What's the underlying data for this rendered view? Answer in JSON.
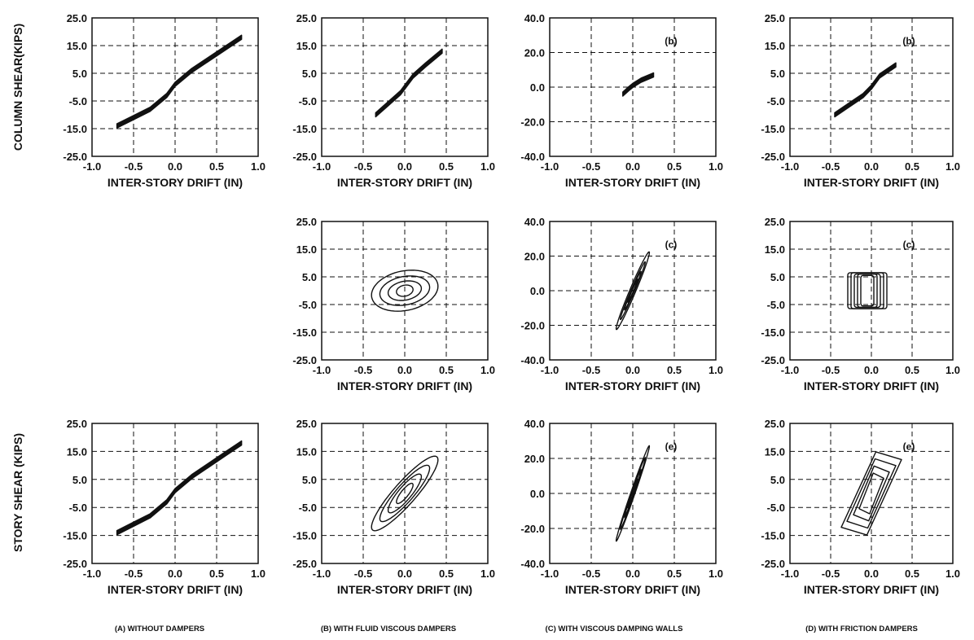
{
  "figure": {
    "row_labels": [
      "COLUMN SHEAR(KIPS)",
      "STORY SHEAR (KIPS)"
    ],
    "column_labels": [
      "(A) WITHOUT DAMPERS",
      "(B) WITH FLUID VISCOUS DAMPERS",
      "(C) WITH VISCOUS DAMPING WALLS",
      "(D) WITH FRICTION DAMPERS"
    ]
  },
  "chart_data": [
    {
      "type": "line",
      "row": 0,
      "col": 0,
      "title": "",
      "annotation": "",
      "xlabel": "INTER-STORY DRIFT (IN)",
      "ylabel": "",
      "xlim": [
        -1.0,
        1.0
      ],
      "ylim": [
        -25,
        25
      ],
      "xticks": [
        "-1.0",
        "-0.5",
        "0.0",
        "0.5",
        "1.0"
      ],
      "yticks": [
        "25.0",
        "15.0",
        "5.0",
        "-5.0",
        "-15.0",
        "-25.0"
      ],
      "grid": true,
      "shape": "narrow-loop",
      "x": [
        -0.7,
        -0.5,
        -0.3,
        -0.1,
        0.0,
        0.2,
        0.4,
        0.6,
        0.8
      ],
      "y": [
        -14,
        -11,
        -8,
        -3,
        1,
        6,
        10,
        14,
        18
      ]
    },
    {
      "type": "line",
      "row": 0,
      "col": 1,
      "title": "",
      "annotation": "",
      "xlabel": "INTER-STORY DRIFT (IN)",
      "ylabel": "",
      "xlim": [
        -1.0,
        1.0
      ],
      "ylim": [
        -25,
        25
      ],
      "xticks": [
        "-1.0",
        "-0.5",
        "0.0",
        "0.5",
        "1.0"
      ],
      "yticks": [
        "25.0",
        "15.0",
        "5.0",
        "-5.0",
        "-15.0",
        "-25.0"
      ],
      "grid": true,
      "shape": "narrow-loop",
      "x": [
        -0.35,
        -0.2,
        -0.05,
        0.0,
        0.1,
        0.25,
        0.45
      ],
      "y": [
        -10,
        -6,
        -2,
        0,
        4,
        8,
        13
      ]
    },
    {
      "type": "line",
      "row": 0,
      "col": 2,
      "title": "",
      "annotation": "(b)",
      "xlabel": "INTER-STORY DRIFT (IN)",
      "ylabel": "",
      "xlim": [
        -1.0,
        1.0
      ],
      "ylim": [
        -40,
        40
      ],
      "xticks": [
        "-1.0",
        "-0.5",
        "0.0",
        "0.5",
        "1.0"
      ],
      "yticks": [
        "40.0",
        "20.0",
        "0.0",
        "-20.0",
        "-40.0"
      ],
      "grid": true,
      "shape": "narrow-loop",
      "x": [
        -0.12,
        -0.05,
        0.0,
        0.1,
        0.25
      ],
      "y": [
        -4,
        -1,
        1,
        4,
        7
      ]
    },
    {
      "type": "line",
      "row": 0,
      "col": 3,
      "title": "",
      "annotation": "(b)",
      "xlabel": "INTER-STORY DRIFT (IN)",
      "ylabel": "",
      "xlim": [
        -1.0,
        1.0
      ],
      "ylim": [
        -25,
        25
      ],
      "xticks": [
        "-1.0",
        "-0.5",
        "0.0",
        "0.5",
        "1.0"
      ],
      "yticks": [
        "25.0",
        "15.0",
        "5.0",
        "-5.0",
        "-15.0",
        "-25.0"
      ],
      "grid": true,
      "shape": "narrow-loop",
      "x": [
        -0.45,
        -0.3,
        -0.1,
        0.0,
        0.1,
        0.3
      ],
      "y": [
        -10,
        -7,
        -3,
        0,
        4,
        8
      ]
    },
    {
      "type": "line",
      "row": 1,
      "col": 1,
      "title": "",
      "annotation": "",
      "xlabel": "INTER-STORY DRIFT (IN)",
      "ylabel": "",
      "xlim": [
        -1.0,
        1.0
      ],
      "ylim": [
        -25,
        25
      ],
      "xticks": [
        "-1.0",
        "-0.5",
        "0.0",
        "0.5",
        "1.0"
      ],
      "yticks": [
        "25.0",
        "15.0",
        "5.0",
        "-5.0",
        "-15.0",
        "-25.0"
      ],
      "grid": true,
      "shape": "ellipses",
      "x_amp": [
        0.1,
        0.2,
        0.3,
        0.4
      ],
      "y_amp": [
        2,
        3,
        4,
        5
      ],
      "slope": 4
    },
    {
      "type": "line",
      "row": 1,
      "col": 2,
      "title": "",
      "annotation": "(c)",
      "xlabel": "INTER-STORY DRIFT (IN)",
      "ylabel": "",
      "xlim": [
        -1.0,
        1.0
      ],
      "ylim": [
        -40,
        40
      ],
      "xticks": [
        "-1.0",
        "-0.5",
        "0.0",
        "0.5",
        "1.0"
      ],
      "yticks": [
        "40.0",
        "20.0",
        "0.0",
        "-20.0",
        "-40.0"
      ],
      "grid": true,
      "shape": "ellipses",
      "x_amp": [
        0.06,
        0.1,
        0.15,
        0.2
      ],
      "y_amp": [
        1,
        1.5,
        2,
        3
      ],
      "slope": 110
    },
    {
      "type": "line",
      "row": 1,
      "col": 3,
      "title": "",
      "annotation": "(c)",
      "xlabel": "INTER-STORY DRIFT (IN)",
      "ylabel": "",
      "xlim": [
        -1.0,
        1.0
      ],
      "ylim": [
        -25,
        25
      ],
      "xticks": [
        "-1.0",
        "-0.5",
        "0.0",
        "0.5",
        "1.0"
      ],
      "yticks": [
        "25.0",
        "15.0",
        "5.0",
        "-5.0",
        "-15.0",
        "-25.0"
      ],
      "grid": true,
      "shape": "rectangles",
      "x_amp": [
        0.08,
        0.12,
        0.16,
        0.2,
        0.24
      ],
      "y_amp": [
        5.5,
        6,
        6,
        6.5,
        6.5
      ],
      "x_center": -0.05
    },
    {
      "type": "line",
      "row": 2,
      "col": 0,
      "title": "",
      "annotation": "",
      "xlabel": "INTER-STORY DRIFT (IN)",
      "ylabel": "",
      "xlim": [
        -1.0,
        1.0
      ],
      "ylim": [
        -25,
        25
      ],
      "xticks": [
        "-1.0",
        "-0.5",
        "0.0",
        "0.5",
        "1.0"
      ],
      "yticks": [
        "25.0",
        "15.0",
        "5.0",
        "-5.0",
        "-15.0",
        "-25.0"
      ],
      "grid": true,
      "shape": "narrow-loop",
      "x": [
        -0.7,
        -0.5,
        -0.3,
        -0.1,
        0.0,
        0.2,
        0.4,
        0.6,
        0.8
      ],
      "y": [
        -14,
        -11,
        -8,
        -3,
        1,
        6,
        10,
        14,
        18
      ]
    },
    {
      "type": "line",
      "row": 2,
      "col": 1,
      "title": "",
      "annotation": "",
      "xlabel": "INTER-STORY DRIFT (IN)",
      "ylabel": "",
      "xlim": [
        -1.0,
        1.0
      ],
      "ylim": [
        -25,
        25
      ],
      "xticks": [
        "-1.0",
        "-0.5",
        "0.0",
        "0.5",
        "1.0"
      ],
      "yticks": [
        "25.0",
        "15.0",
        "5.0",
        "-5.0",
        "-15.0",
        "-25.0"
      ],
      "grid": true,
      "shape": "ellipses",
      "x_amp": [
        0.1,
        0.2,
        0.3,
        0.4
      ],
      "y_amp": [
        2,
        3,
        3.5,
        4
      ],
      "slope": 30
    },
    {
      "type": "line",
      "row": 2,
      "col": 2,
      "title": "",
      "annotation": "(e)",
      "xlabel": "INTER-STORY DRIFT (IN)",
      "ylabel": "",
      "xlim": [
        -1.0,
        1.0
      ],
      "ylim": [
        -40,
        40
      ],
      "xticks": [
        "-1.0",
        "-0.5",
        "0.0",
        "0.5",
        "1.0"
      ],
      "yticks": [
        "40.0",
        "20.0",
        "0.0",
        "-20.0",
        "-40.0"
      ],
      "grid": true,
      "shape": "ellipses",
      "x_amp": [
        0.06,
        0.1,
        0.15,
        0.2
      ],
      "y_amp": [
        1,
        1.5,
        2,
        2.5
      ],
      "slope": 135
    },
    {
      "type": "line",
      "row": 2,
      "col": 3,
      "title": "",
      "annotation": "(e)",
      "xlabel": "INTER-STORY DRIFT (IN)",
      "ylabel": "",
      "xlim": [
        -1.0,
        1.0
      ],
      "ylim": [
        -25,
        25
      ],
      "xticks": [
        "-1.0",
        "-0.5",
        "0.0",
        "0.5",
        "1.0"
      ],
      "yticks": [
        "25.0",
        "15.0",
        "5.0",
        "-5.0",
        "-15.0",
        "-25.0"
      ],
      "grid": true,
      "shape": "parallelograms",
      "x_amp": [
        0.15,
        0.22,
        0.3,
        0.37
      ],
      "y_amp": [
        3,
        4,
        5,
        6
      ],
      "slope": 30
    }
  ]
}
